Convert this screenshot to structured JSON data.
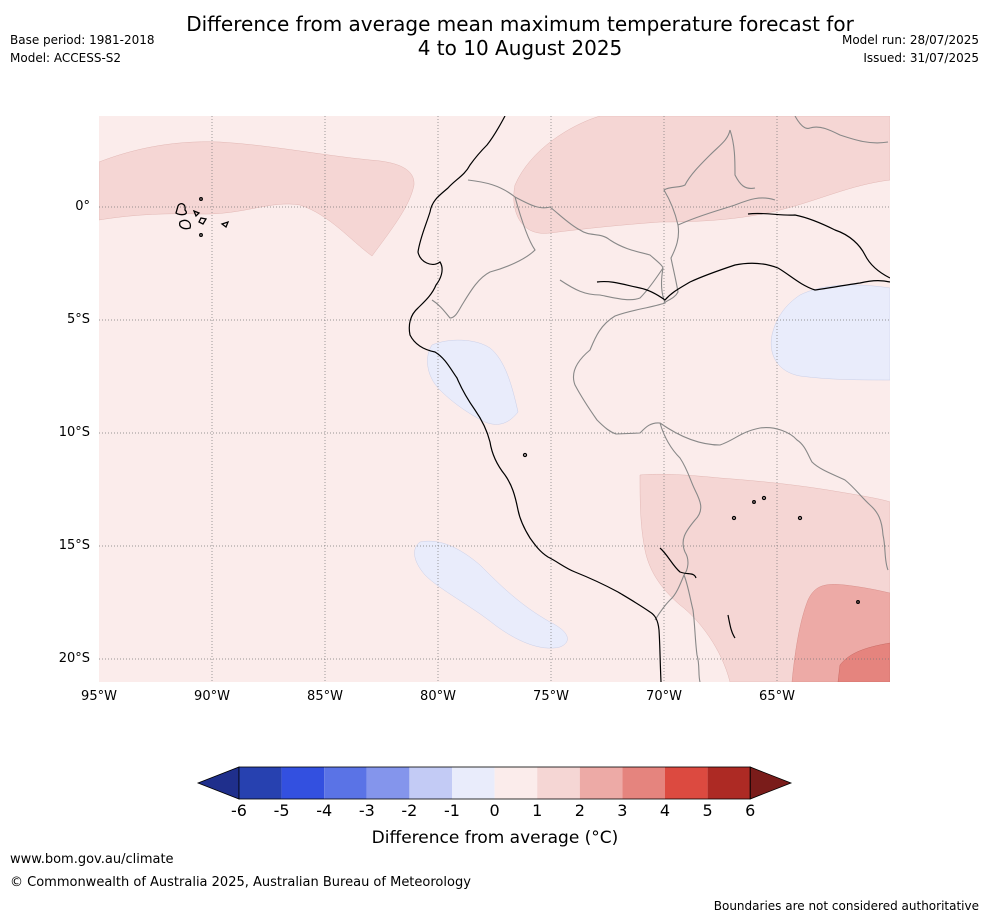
{
  "title_line1": "Difference from average mean maximum temperature forecast for",
  "title_line2": "4 to 10 August 2025",
  "base_period": "Base period: 1981-2018",
  "model": "Model: ACCESS-S2",
  "model_run": "Model run: 28/07/2025",
  "issued": "Issued: 31/07/2025",
  "lat_ticks": [
    "0°",
    "5°S",
    "10°S",
    "15°S",
    "20°S"
  ],
  "lon_ticks": [
    "95°W",
    "90°W",
    "85°W",
    "80°W",
    "75°W",
    "70°W",
    "65°W"
  ],
  "colorbar": {
    "title": "Difference from average (°C)",
    "labels": [
      "-6",
      "-5",
      "-4",
      "-3",
      "-2",
      "-1",
      "0",
      "1",
      "2",
      "3",
      "4",
      "5",
      "6"
    ],
    "colors": [
      "#1f2f8c",
      "#2741b0",
      "#3350e0",
      "#5a73e6",
      "#8495ec",
      "#c3cbf5",
      "#e9ecfb",
      "#fbeceb",
      "#f5d6d4",
      "#edaaa6",
      "#e5847e",
      "#dc4a40",
      "#ad2a24",
      "#7a1c1a"
    ]
  },
  "footer_url": "www.bom.gov.au/climate",
  "footer_copyright": "© Commonwealth of Australia 2025, Australian Bureau of Meteorology",
  "footer_note": "Boundaries are not considered authoritative"
}
